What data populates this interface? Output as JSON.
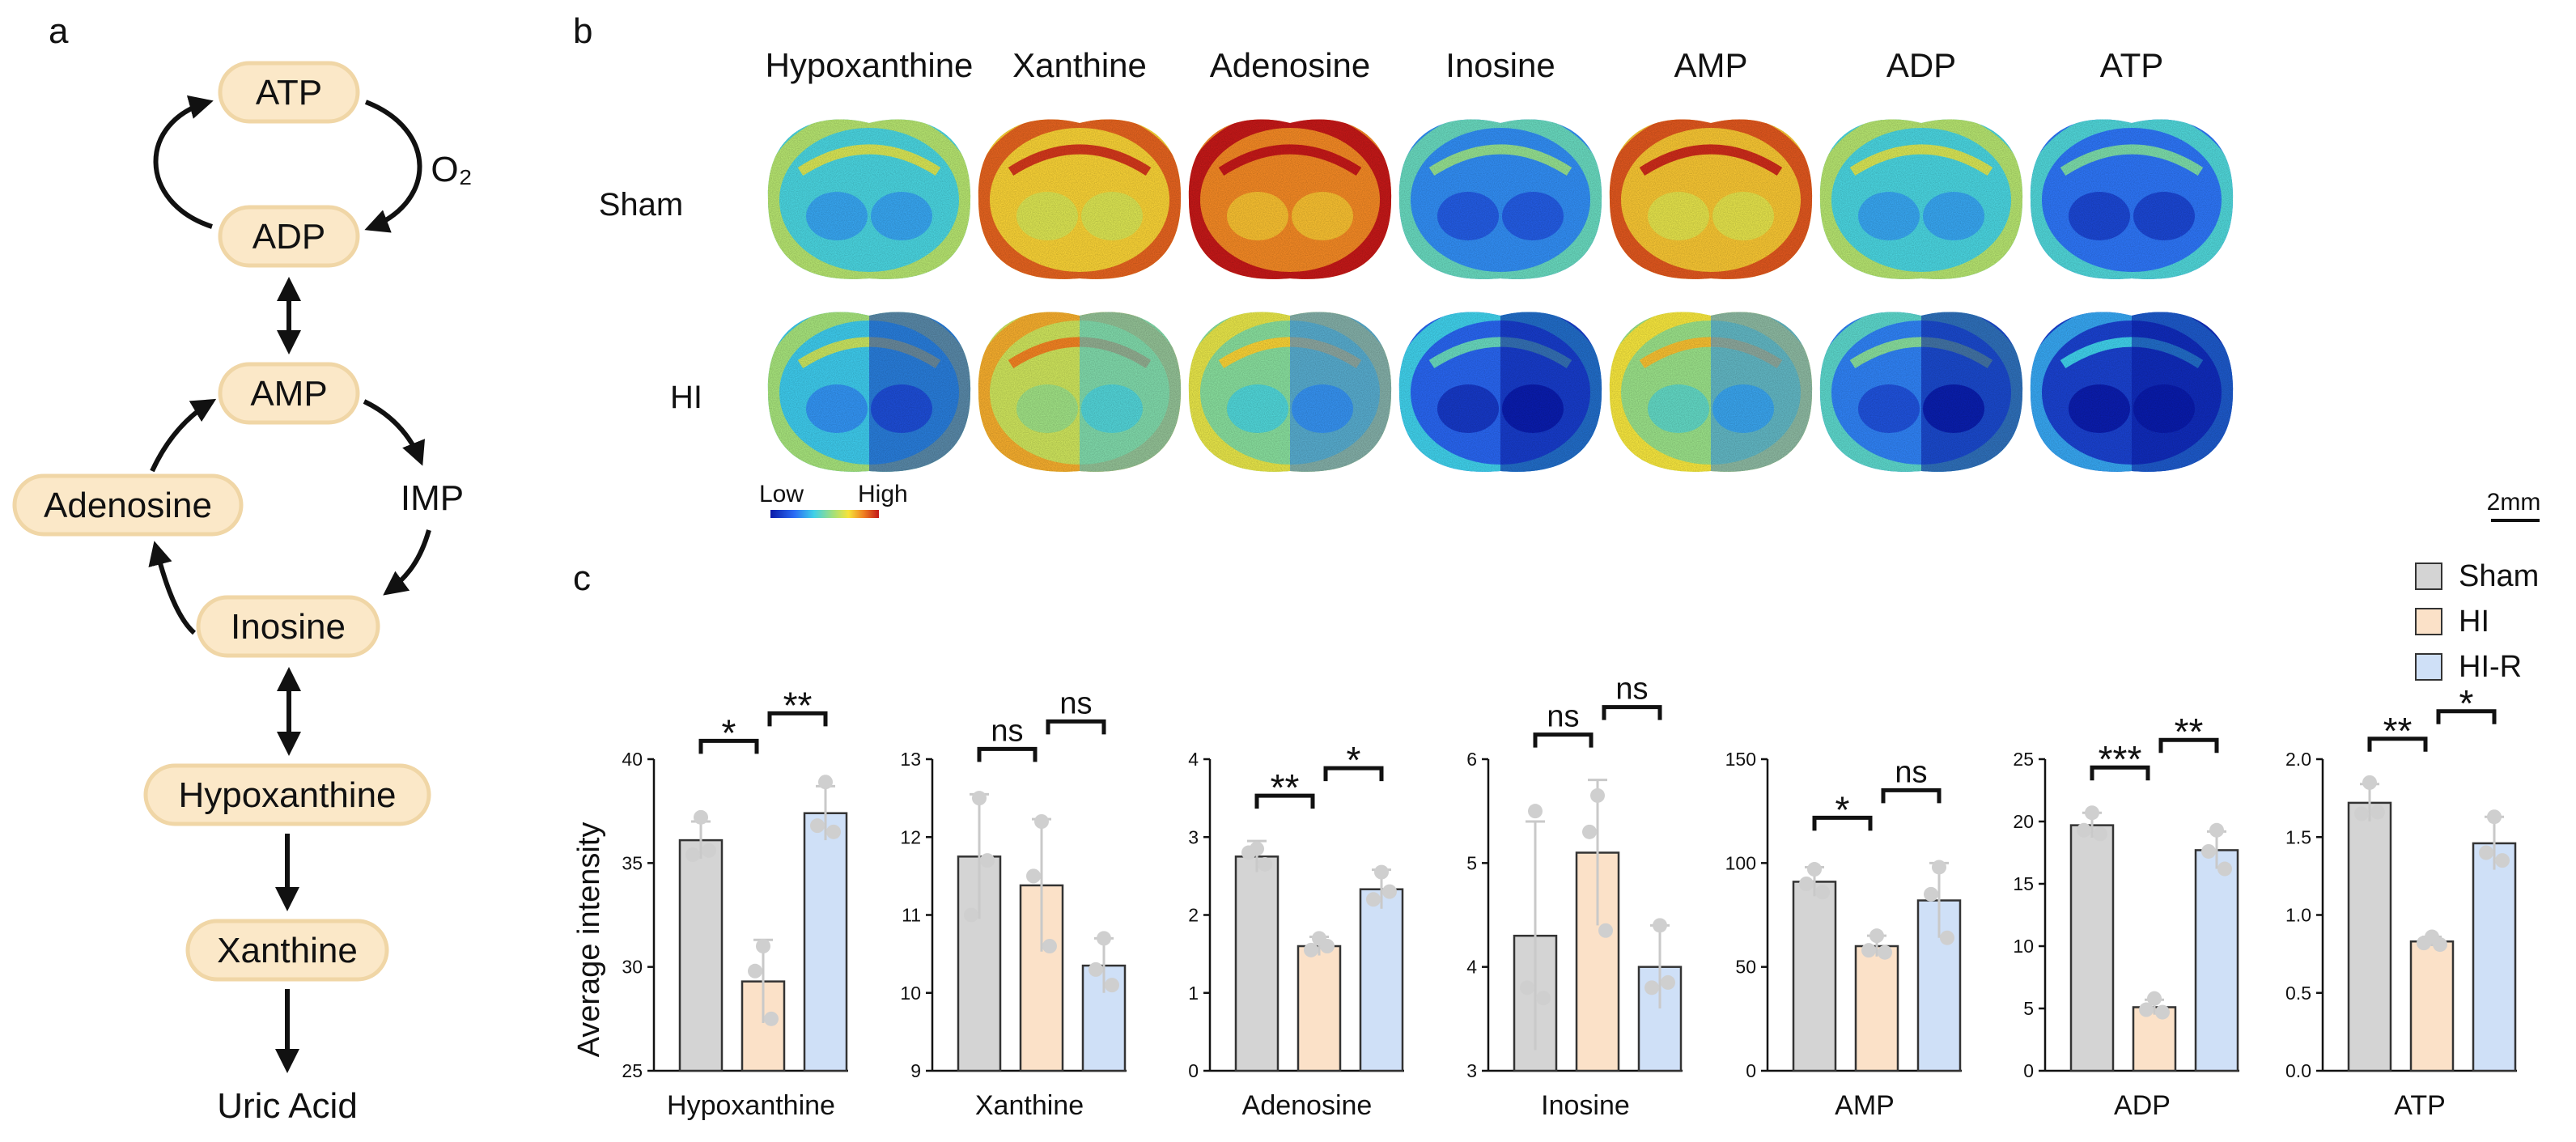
{
  "panel_labels": {
    "a": "a",
    "b": "b",
    "c": "c"
  },
  "pathway": {
    "nodes": {
      "atp": "ATP",
      "adp": "ADP",
      "amp": "AMP",
      "adenosine": "Adenosine",
      "inosine": "Inosine",
      "hypoxanthine": "Hypoxanthine",
      "xanthine": "Xanthine"
    },
    "o2": "O₂",
    "imp": "IMP",
    "uric_acid": "Uric Acid"
  },
  "imaging": {
    "columns": [
      "Hypoxanthine",
      "Xanthine",
      "Adenosine",
      "Inosine",
      "AMP",
      "ADP",
      "ATP"
    ],
    "rows": [
      "Sham",
      "HI"
    ],
    "colorbar_low": "Low",
    "colorbar_high": "High",
    "scale_bar": "2mm",
    "levels": {
      "Sham": [
        0.35,
        0.7,
        0.82,
        0.22,
        0.72,
        0.35,
        0.18
      ],
      "HI": [
        0.32,
        0.58,
        0.45,
        0.15,
        0.48,
        0.2,
        0.08
      ]
    }
  },
  "legend": [
    {
      "label": "Sham",
      "color": "#d4d4d4"
    },
    {
      "label": "HI",
      "color": "#fbe1c8"
    },
    {
      "label": "HI-R",
      "color": "#cfe0f7"
    }
  ],
  "ylabel": "Average intensity",
  "chart_data": [
    {
      "type": "bar",
      "title": "Hypoxanthine",
      "categories": [
        "Sham",
        "HI",
        "HI-R"
      ],
      "ylim": [
        25,
        40
      ],
      "ticks": [
        25,
        30,
        35,
        40
      ],
      "values": [
        36.1,
        29.3,
        37.4
      ],
      "err": [
        0.9,
        2.0,
        1.3
      ],
      "points": [
        [
          37.2,
          35.4,
          35.6
        ],
        [
          31.0,
          29.8,
          27.5
        ],
        [
          38.9,
          36.8,
          36.5
        ]
      ],
      "sig": [
        "*",
        "**"
      ]
    },
    {
      "type": "bar",
      "title": "Xanthine",
      "categories": [
        "Sham",
        "HI",
        "HI-R"
      ],
      "ylim": [
        9,
        13
      ],
      "ticks": [
        9,
        10,
        11,
        12,
        13
      ],
      "values": [
        11.75,
        11.38,
        10.35
      ],
      "err": [
        0.8,
        0.85,
        0.35
      ],
      "points": [
        [
          12.5,
          11.0,
          11.7
        ],
        [
          12.2,
          11.5,
          10.6
        ],
        [
          10.7,
          10.3,
          10.1
        ]
      ],
      "sig": [
        "ns",
        "ns"
      ]
    },
    {
      "type": "bar",
      "title": "Adenosine",
      "categories": [
        "Sham",
        "HI",
        "HI-R"
      ],
      "ylim": [
        0,
        4
      ],
      "ticks": [
        0,
        1,
        2,
        3,
        4
      ],
      "values": [
        2.75,
        1.6,
        2.33
      ],
      "err": [
        0.2,
        0.12,
        0.25
      ],
      "points": [
        [
          2.85,
          2.8,
          2.65
        ],
        [
          1.7,
          1.55,
          1.6
        ],
        [
          2.55,
          2.2,
          2.3
        ]
      ],
      "sig": [
        "**",
        "*"
      ]
    },
    {
      "type": "bar",
      "title": "Inosine",
      "categories": [
        "Sham",
        "HI",
        "HI-R"
      ],
      "ylim": [
        3,
        6
      ],
      "ticks": [
        3,
        4,
        5,
        6
      ],
      "values": [
        4.3,
        5.1,
        4.0
      ],
      "err": [
        1.1,
        0.7,
        0.4
      ],
      "points": [
        [
          5.5,
          3.8,
          3.7
        ],
        [
          5.65,
          5.3,
          4.35
        ],
        [
          4.4,
          3.8,
          3.85
        ]
      ],
      "sig": [
        "ns",
        "ns"
      ]
    },
    {
      "type": "bar",
      "title": "AMP",
      "categories": [
        "Sham",
        "HI",
        "HI-R"
      ],
      "ylim": [
        0,
        150
      ],
      "ticks": [
        0,
        50,
        100,
        150
      ],
      "values": [
        91,
        60,
        82
      ],
      "err": [
        7,
        5,
        18
      ],
      "points": [
        [
          97,
          90,
          86
        ],
        [
          65,
          58,
          57
        ],
        [
          98,
          85,
          64
        ]
      ],
      "sig": [
        "*",
        "ns"
      ]
    },
    {
      "type": "bar",
      "title": "ADP",
      "categories": [
        "Sham",
        "HI",
        "HI-R"
      ],
      "ylim": [
        0,
        25
      ],
      "ticks": [
        0,
        5,
        10,
        15,
        20,
        25
      ],
      "values": [
        19.7,
        5.1,
        17.7
      ],
      "err": [
        1.0,
        0.6,
        1.5
      ],
      "points": [
        [
          20.7,
          19.3,
          19.0
        ],
        [
          5.8,
          4.9,
          4.7
        ],
        [
          19.3,
          17.6,
          16.2
        ]
      ],
      "sig": [
        "***",
        "**"
      ]
    },
    {
      "type": "bar",
      "title": "ATP",
      "categories": [
        "Sham",
        "HI",
        "HI-R"
      ],
      "ylim": [
        0,
        2.0
      ],
      "ticks": [
        "0.0",
        "0.5",
        "1.0",
        "1.5",
        "2.0"
      ],
      "values": [
        1.72,
        0.83,
        1.46
      ],
      "err": [
        0.12,
        0.03,
        0.17
      ],
      "points": [
        [
          1.85,
          1.65,
          1.66
        ],
        [
          0.86,
          0.82,
          0.81
        ],
        [
          1.63,
          1.4,
          1.35
        ]
      ],
      "sig": [
        "**",
        "*"
      ]
    }
  ]
}
